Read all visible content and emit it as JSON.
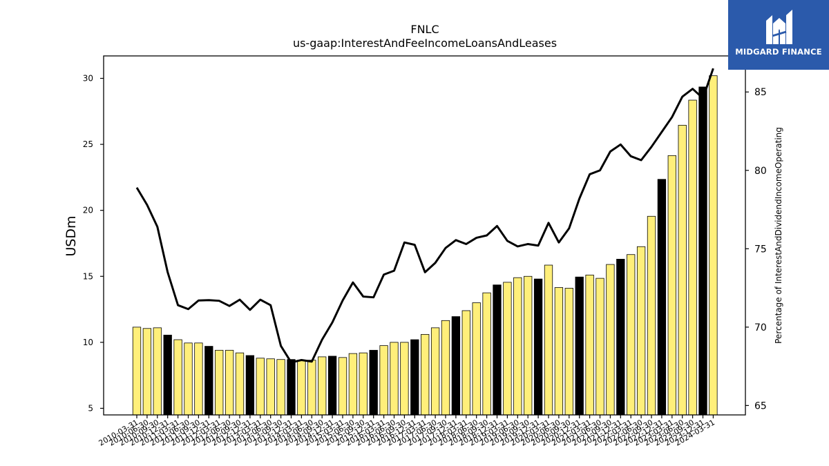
{
  "brand": {
    "name": "MIDGARD FINANCE",
    "color": "#2b5aab",
    "logo_icon": "mf-logo-icon"
  },
  "chart_data": {
    "type": "bar+line",
    "title": "FNLC",
    "subtitle": "us-gaap:InterestAndFeeIncomeLoansAndLeases",
    "ylabel": "USDm",
    "y2label": "Percentage of InterestAndDividendIncomeOperating",
    "ylim": [
      4.5,
      31.7
    ],
    "y2lim": [
      64.4,
      87.3
    ],
    "yticks": [
      5,
      10,
      15,
      20,
      25,
      30
    ],
    "y2ticks": [
      65,
      70,
      75,
      80,
      85
    ],
    "colors": {
      "bar_quarter": "#ffef7a",
      "bar_fy": "#000000",
      "line": "#000000"
    },
    "categories": [
      "2010-03-31",
      "2010-06-30",
      "2010-09-30",
      "2010-12-31",
      "2011-03-31",
      "2011-06-30",
      "2011-09-30",
      "2011-12-31",
      "2012-03-31",
      "2012-06-30",
      "2012-09-30",
      "2012-12-31",
      "2013-03-31",
      "2013-06-30",
      "2013-09-30",
      "2013-12-31",
      "2014-03-31",
      "2014-06-30",
      "2014-09-30",
      "2014-12-31",
      "2015-03-31",
      "2015-06-30",
      "2015-09-30",
      "2015-12-31",
      "2016-03-31",
      "2016-06-30",
      "2016-09-30",
      "2016-12-31",
      "2017-03-31",
      "2017-06-30",
      "2017-09-30",
      "2017-12-31",
      "2018-03-31",
      "2018-06-30",
      "2018-09-30",
      "2018-12-31",
      "2019-03-31",
      "2019-06-30",
      "2019-09-30",
      "2019-12-31",
      "2020-03-31",
      "2020-06-30",
      "2020-09-30",
      "2020-12-31",
      "2021-03-31",
      "2021-06-30",
      "2021-09-30",
      "2021-12-31",
      "2022-03-31",
      "2022-06-30",
      "2022-09-30",
      "2022-12-31",
      "2023-03-31",
      "2023-06-30",
      "2023-09-30",
      "2023-12-31",
      "2024-03-31"
    ],
    "series": [
      {
        "kind": "bar",
        "axis": "left",
        "values": [
          11.15,
          11.05,
          11.1,
          10.55,
          10.2,
          9.95,
          9.95,
          9.7,
          9.4,
          9.4,
          9.2,
          9.0,
          8.8,
          8.75,
          8.7,
          8.7,
          8.65,
          8.65,
          8.9,
          8.95,
          8.85,
          9.15,
          9.2,
          9.4,
          9.75,
          10.0,
          10.0,
          10.2,
          10.6,
          11.1,
          11.65,
          11.95,
          12.4,
          13.0,
          13.75,
          14.35,
          14.55,
          14.9,
          15.0,
          14.8,
          15.85,
          14.15,
          14.1,
          14.95,
          15.1,
          14.85,
          15.9,
          16.3,
          16.65,
          17.25,
          19.55,
          22.35,
          24.15,
          26.45,
          28.35,
          29.35,
          30.2
        ],
        "highlight": [
          false,
          false,
          false,
          true,
          false,
          false,
          false,
          true,
          false,
          false,
          false,
          true,
          false,
          false,
          false,
          true,
          false,
          false,
          false,
          true,
          false,
          false,
          false,
          true,
          false,
          false,
          false,
          true,
          false,
          false,
          false,
          true,
          false,
          false,
          false,
          true,
          false,
          false,
          false,
          true,
          false,
          false,
          false,
          true,
          false,
          false,
          false,
          true,
          false,
          false,
          false,
          true,
          false,
          false,
          false,
          true,
          false
        ]
      },
      {
        "kind": "line",
        "axis": "right",
        "values": [
          78.9,
          77.8,
          76.4,
          73.5,
          71.4,
          71.15,
          71.7,
          71.72,
          71.68,
          71.35,
          71.75,
          71.1,
          71.75,
          71.4,
          68.8,
          67.75,
          67.9,
          67.8,
          69.2,
          70.3,
          71.7,
          72.85,
          71.95,
          71.9,
          73.35,
          73.6,
          75.4,
          75.25,
          73.5,
          74.1,
          75.05,
          75.55,
          75.3,
          75.7,
          75.85,
          76.45,
          75.5,
          75.15,
          75.3,
          75.2,
          76.65,
          75.4,
          76.3,
          78.2,
          79.75,
          80.0,
          81.2,
          81.65,
          80.9,
          80.65,
          81.5,
          82.45,
          83.4,
          84.7,
          85.2,
          84.6,
          86.5
        ]
      }
    ]
  }
}
